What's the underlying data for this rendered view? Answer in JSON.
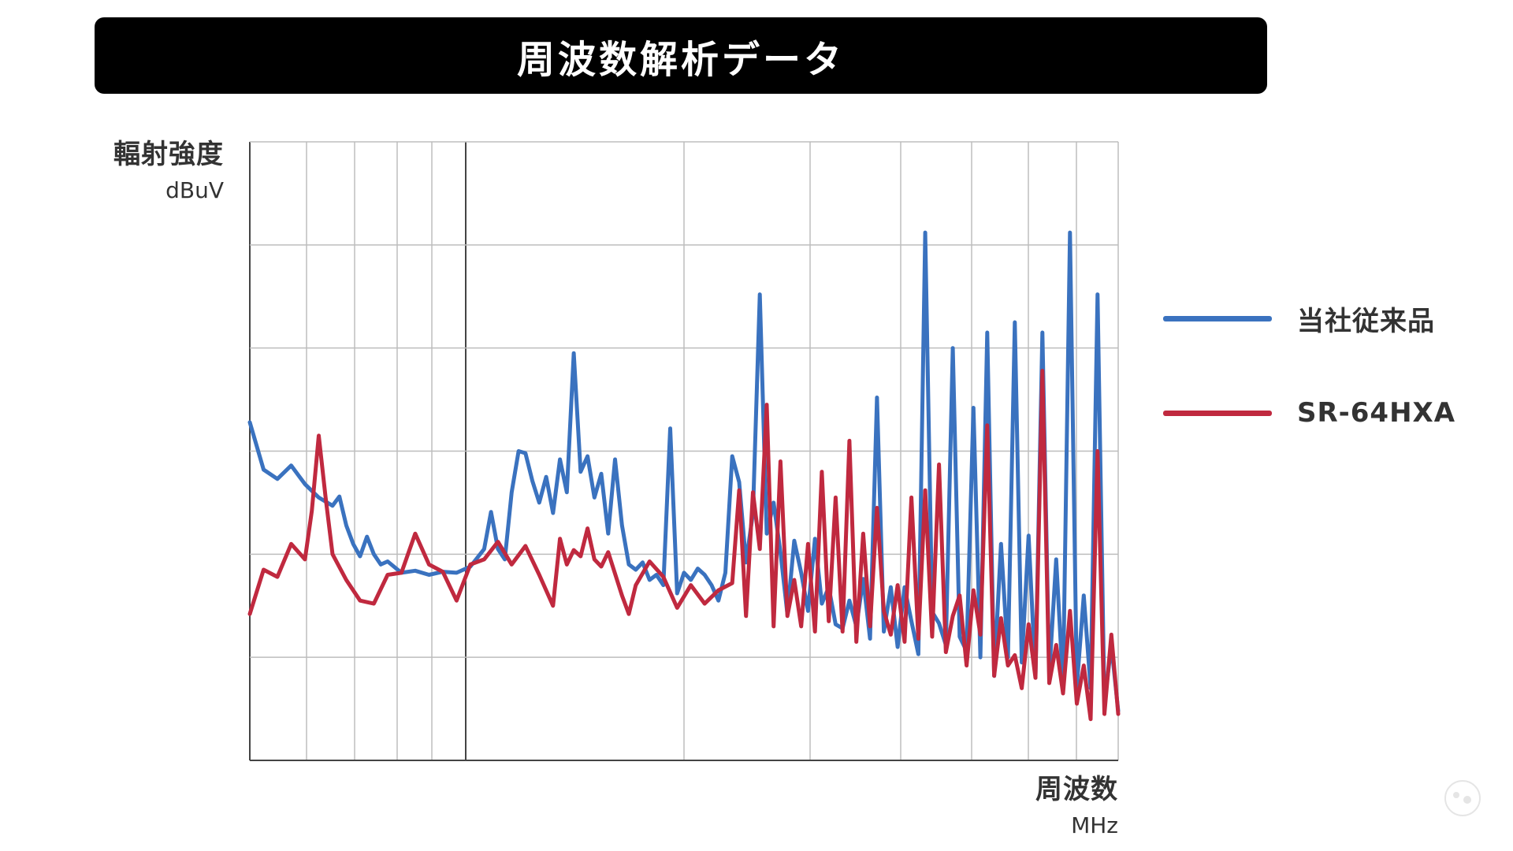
{
  "header": {
    "title": "周波数解析データ"
  },
  "chart_data": {
    "type": "line",
    "title": "周波数解析データ",
    "ylabel": "輻射強度",
    "yunit": "dBuV",
    "xlabel": "周波数",
    "xunit": "MHz",
    "xscale": "log",
    "grid": true,
    "legend_position": "right",
    "series": [
      {
        "name": "当社従来品",
        "color": "#3a72bf",
        "points": [
          [
            0,
            3.28
          ],
          [
            2,
            2.82
          ],
          [
            4,
            2.73
          ],
          [
            6,
            2.86
          ],
          [
            8,
            2.68
          ],
          [
            10,
            2.55
          ],
          [
            12,
            2.47
          ],
          [
            13,
            2.56
          ],
          [
            14,
            2.28
          ],
          [
            15,
            2.1
          ],
          [
            16,
            1.98
          ],
          [
            17,
            2.17
          ],
          [
            18,
            2.0
          ],
          [
            19,
            1.9
          ],
          [
            20,
            1.93
          ],
          [
            22,
            1.82
          ],
          [
            24,
            1.84
          ],
          [
            26,
            1.8
          ],
          [
            28,
            1.83
          ],
          [
            30,
            1.82
          ],
          [
            32,
            1.88
          ],
          [
            34,
            2.05
          ],
          [
            35,
            2.41
          ],
          [
            36,
            2.05
          ],
          [
            37,
            1.95
          ],
          [
            38,
            2.6
          ],
          [
            39,
            3.0
          ],
          [
            40,
            2.98
          ],
          [
            41,
            2.71
          ],
          [
            42,
            2.5
          ],
          [
            43,
            2.75
          ],
          [
            44,
            2.4
          ],
          [
            45,
            2.92
          ],
          [
            46,
            2.6
          ],
          [
            47,
            3.95
          ],
          [
            48,
            2.8
          ],
          [
            49,
            2.95
          ],
          [
            50,
            2.55
          ],
          [
            51,
            2.78
          ],
          [
            52,
            2.2
          ],
          [
            53,
            2.92
          ],
          [
            54,
            2.28
          ],
          [
            55,
            1.9
          ],
          [
            56,
            1.85
          ],
          [
            57,
            1.92
          ],
          [
            58,
            1.75
          ],
          [
            59,
            1.8
          ],
          [
            60,
            1.7
          ],
          [
            61,
            3.22
          ],
          [
            62,
            1.62
          ],
          [
            63,
            1.82
          ],
          [
            64,
            1.75
          ],
          [
            65,
            1.86
          ],
          [
            66,
            1.8
          ],
          [
            67,
            1.7
          ],
          [
            68,
            1.55
          ],
          [
            69,
            1.82
          ],
          [
            70,
            2.95
          ],
          [
            71,
            2.7
          ],
          [
            72,
            1.92
          ],
          [
            73,
            2.4
          ],
          [
            74,
            4.52
          ],
          [
            75,
            2.2
          ],
          [
            76,
            2.5
          ],
          [
            77,
            2.02
          ],
          [
            78,
            1.42
          ],
          [
            79,
            2.13
          ],
          [
            80,
            1.82
          ],
          [
            81,
            1.45
          ],
          [
            82,
            2.15
          ],
          [
            83,
            1.52
          ],
          [
            84,
            1.68
          ],
          [
            85,
            1.32
          ],
          [
            86,
            1.28
          ],
          [
            87,
            1.55
          ],
          [
            88,
            1.3
          ],
          [
            89,
            1.76
          ],
          [
            90,
            1.18
          ],
          [
            91,
            3.52
          ],
          [
            92,
            1.25
          ],
          [
            93,
            1.68
          ],
          [
            94,
            1.1
          ],
          [
            95,
            1.68
          ],
          [
            96,
            1.35
          ],
          [
            97,
            1.03
          ],
          [
            98,
            5.12
          ],
          [
            99,
            1.44
          ],
          [
            100,
            1.33
          ],
          [
            101,
            1.12
          ],
          [
            102,
            4.0
          ],
          [
            103,
            1.2
          ],
          [
            104,
            1.06
          ],
          [
            105,
            3.42
          ],
          [
            106,
            1.0
          ],
          [
            107,
            4.15
          ],
          [
            108,
            0.82
          ],
          [
            109,
            2.1
          ],
          [
            110,
            1.0
          ],
          [
            111,
            4.25
          ],
          [
            112,
            0.95
          ],
          [
            113,
            2.18
          ],
          [
            114,
            0.82
          ],
          [
            115,
            4.15
          ],
          [
            116,
            0.83
          ],
          [
            117,
            1.95
          ],
          [
            118,
            0.72
          ],
          [
            119,
            5.12
          ],
          [
            120,
            0.72
          ],
          [
            121,
            1.6
          ],
          [
            122,
            0.7
          ],
          [
            123,
            4.52
          ],
          [
            124,
            0.55
          ],
          [
            125,
            1.12
          ],
          [
            126,
            0.48
          ]
        ]
      },
      {
        "name": "SR-64HXA",
        "color": "#c0293f",
        "points": [
          [
            0,
            1.42
          ],
          [
            2,
            1.85
          ],
          [
            4,
            1.78
          ],
          [
            6,
            2.1
          ],
          [
            8,
            1.95
          ],
          [
            9,
            2.42
          ],
          [
            10,
            3.15
          ],
          [
            11,
            2.55
          ],
          [
            12,
            2.0
          ],
          [
            14,
            1.75
          ],
          [
            16,
            1.55
          ],
          [
            18,
            1.52
          ],
          [
            20,
            1.8
          ],
          [
            22,
            1.82
          ],
          [
            24,
            2.2
          ],
          [
            26,
            1.9
          ],
          [
            28,
            1.83
          ],
          [
            30,
            1.55
          ],
          [
            32,
            1.9
          ],
          [
            34,
            1.95
          ],
          [
            36,
            2.12
          ],
          [
            38,
            1.9
          ],
          [
            40,
            2.08
          ],
          [
            42,
            1.8
          ],
          [
            44,
            1.5
          ],
          [
            45,
            2.15
          ],
          [
            46,
            1.9
          ],
          [
            47,
            2.04
          ],
          [
            48,
            1.98
          ],
          [
            49,
            2.25
          ],
          [
            50,
            1.95
          ],
          [
            51,
            1.88
          ],
          [
            52,
            2.02
          ],
          [
            54,
            1.6
          ],
          [
            55,
            1.42
          ],
          [
            56,
            1.7
          ],
          [
            58,
            1.93
          ],
          [
            60,
            1.78
          ],
          [
            62,
            1.48
          ],
          [
            64,
            1.7
          ],
          [
            66,
            1.52
          ],
          [
            68,
            1.65
          ],
          [
            70,
            1.72
          ],
          [
            71,
            2.62
          ],
          [
            72,
            1.4
          ],
          [
            73,
            2.6
          ],
          [
            74,
            2.05
          ],
          [
            75,
            3.45
          ],
          [
            76,
            1.3
          ],
          [
            77,
            2.9
          ],
          [
            78,
            1.4
          ],
          [
            79,
            1.75
          ],
          [
            80,
            1.3
          ],
          [
            81,
            2.1
          ],
          [
            82,
            1.25
          ],
          [
            83,
            2.8
          ],
          [
            84,
            1.35
          ],
          [
            85,
            2.55
          ],
          [
            86,
            1.25
          ],
          [
            87,
            3.1
          ],
          [
            88,
            1.15
          ],
          [
            89,
            2.2
          ],
          [
            90,
            1.3
          ],
          [
            91,
            2.45
          ],
          [
            92,
            1.45
          ],
          [
            93,
            1.22
          ],
          [
            94,
            1.7
          ],
          [
            95,
            1.15
          ],
          [
            96,
            2.55
          ],
          [
            97,
            1.18
          ],
          [
            98,
            2.62
          ],
          [
            99,
            1.2
          ],
          [
            100,
            2.87
          ],
          [
            101,
            1.05
          ],
          [
            102,
            1.4
          ],
          [
            103,
            1.6
          ],
          [
            104,
            0.92
          ],
          [
            105,
            1.65
          ],
          [
            106,
            1.22
          ],
          [
            107,
            3.25
          ],
          [
            108,
            0.82
          ],
          [
            109,
            1.38
          ],
          [
            110,
            0.92
          ],
          [
            111,
            1.02
          ],
          [
            112,
            0.7
          ],
          [
            113,
            1.32
          ],
          [
            114,
            0.8
          ],
          [
            115,
            3.78
          ],
          [
            116,
            0.75
          ],
          [
            117,
            1.12
          ],
          [
            118,
            0.65
          ],
          [
            119,
            1.45
          ],
          [
            120,
            0.55
          ],
          [
            121,
            0.92
          ],
          [
            122,
            0.4
          ],
          [
            123,
            3.0
          ],
          [
            124,
            0.45
          ],
          [
            125,
            1.22
          ],
          [
            126,
            0.45
          ]
        ]
      }
    ]
  },
  "icons": {
    "corner_logo": "watermark-logo-icon"
  }
}
